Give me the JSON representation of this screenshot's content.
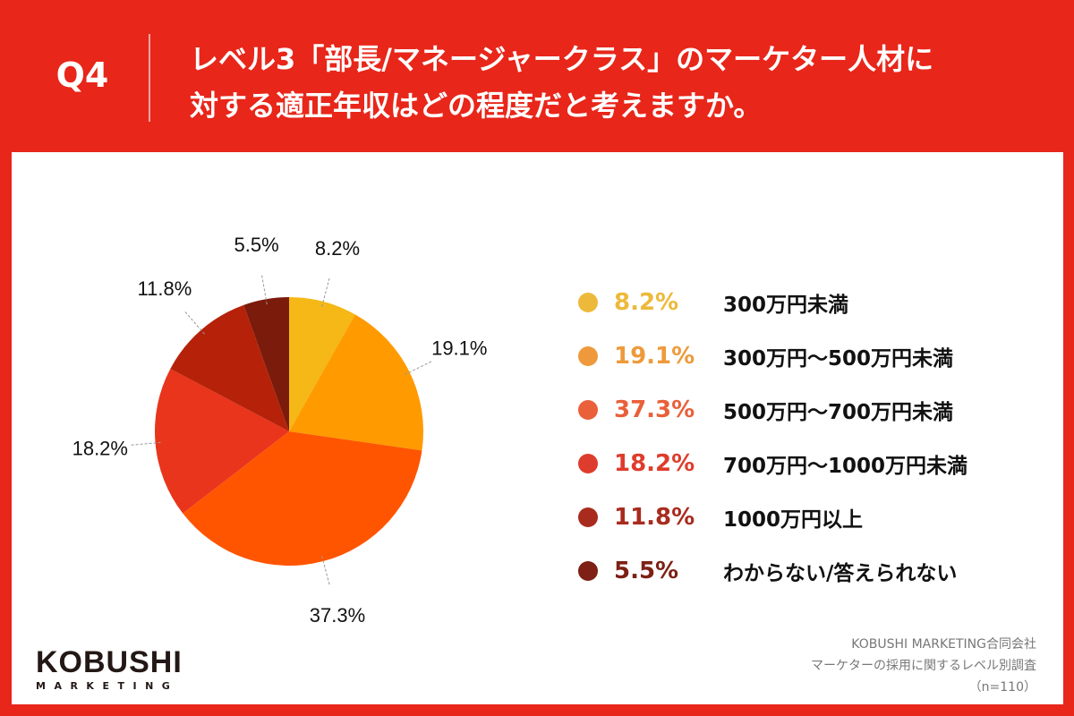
{
  "header": {
    "question": "Q4",
    "title": "レベル3「部長/マネージャークラス」のマーケター人材に\n対する適正年収はどの程度だと考えますか。"
  },
  "chart_data": {
    "type": "pie",
    "categories": [
      "300万円未満",
      "300万円〜500万円未満",
      "500万円〜700万円未満",
      "700万円〜1000万円未満",
      "1000万円以上",
      "わからない/答えられない"
    ],
    "values": [
      8.2,
      19.1,
      37.3,
      18.2,
      11.8,
      5.5
    ],
    "labels": [
      "8.2%",
      "19.1%",
      "37.3%",
      "18.2%",
      "11.8%",
      "5.5%"
    ],
    "colors": [
      "#F5B816",
      "#FF9A00",
      "#FF5500",
      "#E8351C",
      "#B52209",
      "#7B1B0B"
    ],
    "legend_colors": [
      "#EDB93A",
      "#EE9A3C",
      "#E9603A",
      "#DE3C2C",
      "#A82B1E",
      "#7E2015"
    ],
    "start": "top",
    "direction": "clockwise",
    "legend_placement": "right"
  },
  "footer": {
    "logo": "KOBUSHI",
    "logo_sub": "MARKETING",
    "source": [
      "KOBUSHI MARKETING合同会社",
      "マーケターの採用に関するレベル別調査",
      "（n=110）"
    ]
  }
}
